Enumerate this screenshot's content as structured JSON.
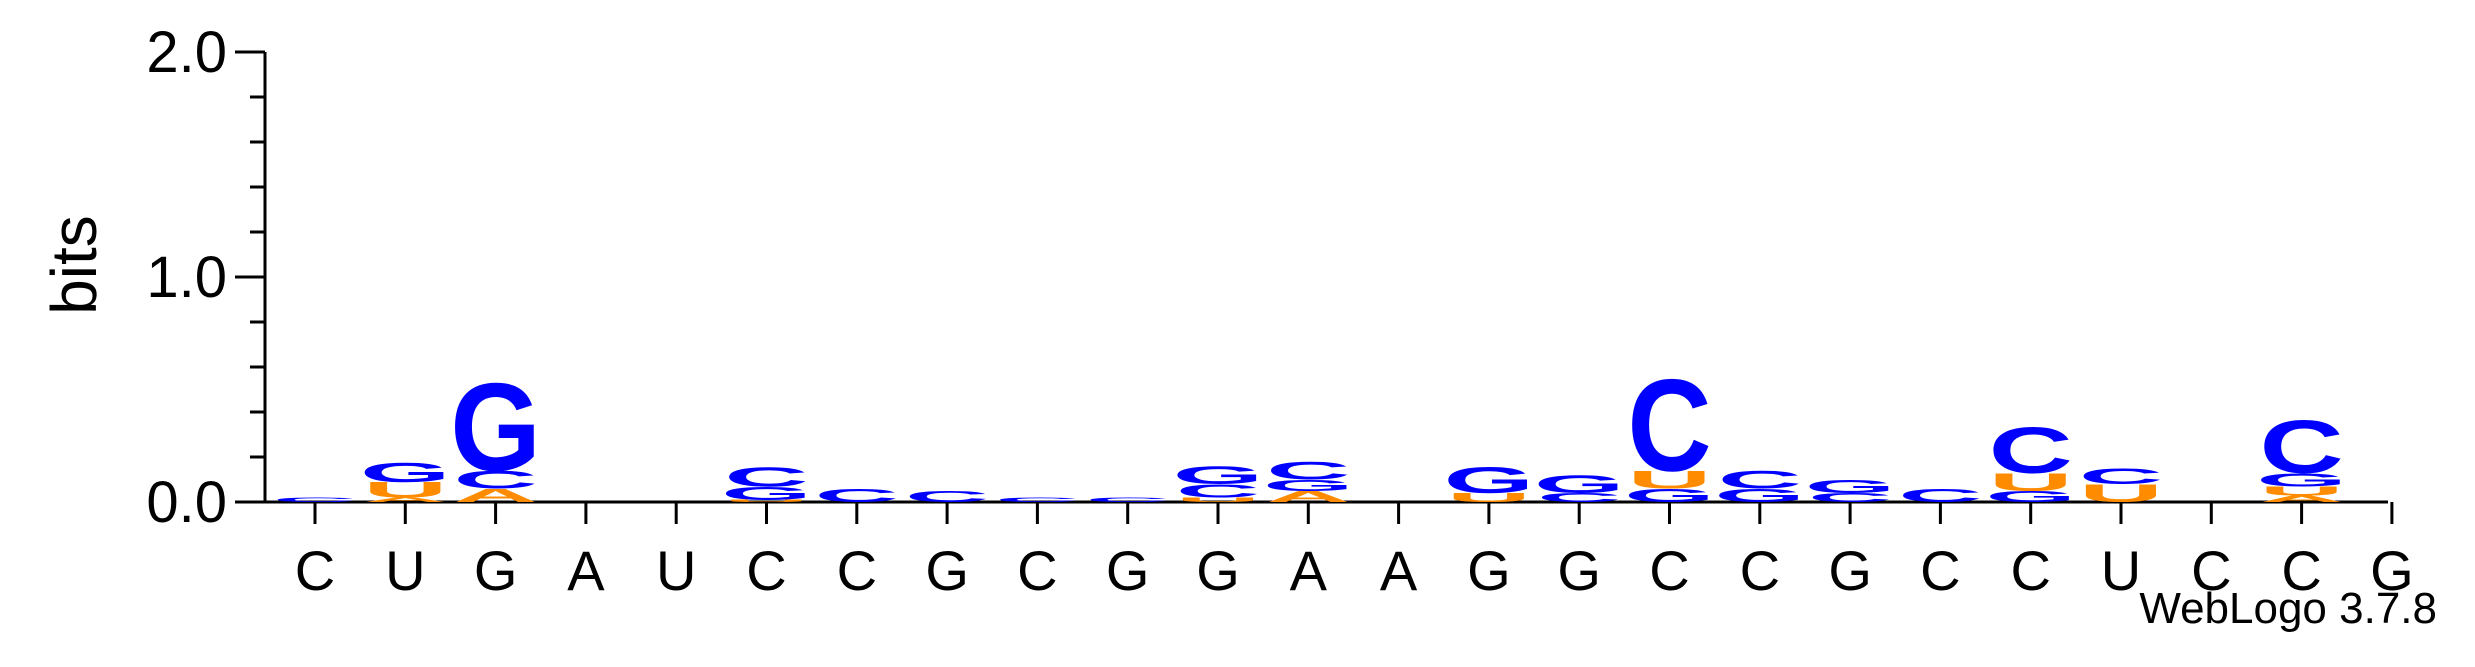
{
  "chart_data": {
    "type": "sequence-logo",
    "ylabel": "bits",
    "ylim": [
      0,
      2.0
    ],
    "yticks": [
      "0.0",
      "1.0",
      "2.0"
    ],
    "categories": [
      "C",
      "U",
      "G",
      "A",
      "U",
      "C",
      "C",
      "G",
      "C",
      "G",
      "G",
      "A",
      "A",
      "G",
      "G",
      "C",
      "C",
      "G",
      "C",
      "C",
      "U",
      "C",
      "C",
      "G"
    ],
    "colors": {
      "A": "#ff8c00",
      "C": "#0000ff",
      "G": "#0000ff",
      "U": "#ff8c00"
    },
    "stacks": [
      [
        [
          "C",
          0.02
        ]
      ],
      [
        [
          "A",
          0.02
        ],
        [
          "U",
          0.07
        ],
        [
          "G",
          0.09
        ]
      ],
      [
        [
          "A",
          0.06
        ],
        [
          "C",
          0.08
        ],
        [
          "G",
          0.4
        ]
      ],
      [],
      [],
      [
        [
          "U",
          0.01
        ],
        [
          "G",
          0.06
        ],
        [
          "C",
          0.09
        ]
      ],
      [
        [
          "C",
          0.06
        ]
      ],
      [
        [
          "C",
          0.05
        ]
      ],
      [
        [
          "C",
          0.02
        ]
      ],
      [
        [
          "C",
          0.02
        ]
      ],
      [
        [
          "U",
          0.02
        ],
        [
          "C",
          0.06
        ],
        [
          "G",
          0.08
        ]
      ],
      [
        [
          "A",
          0.05
        ],
        [
          "G",
          0.05
        ],
        [
          "C",
          0.08
        ]
      ],
      [],
      [
        [
          "U",
          0.04
        ],
        [
          "G",
          0.12
        ]
      ],
      [
        [
          "C",
          0.04
        ],
        [
          "G",
          0.08
        ]
      ],
      [
        [
          "G",
          0.06
        ],
        [
          "U",
          0.08
        ],
        [
          "C",
          0.42
        ]
      ],
      [
        [
          "G",
          0.06
        ],
        [
          "C",
          0.08
        ]
      ],
      [
        [
          "C",
          0.04
        ],
        [
          "G",
          0.06
        ]
      ],
      [
        [
          "C",
          0.06
        ]
      ],
      [
        [
          "G",
          0.05
        ],
        [
          "U",
          0.08
        ],
        [
          "C",
          0.21
        ]
      ],
      [
        [
          "U",
          0.08
        ],
        [
          "C",
          0.07
        ]
      ],
      [],
      [
        [
          "A",
          0.03
        ],
        [
          "U",
          0.04
        ],
        [
          "G",
          0.06
        ],
        [
          "C",
          0.24
        ]
      ],
      []
    ],
    "credit": "WebLogo 3.7.8"
  }
}
